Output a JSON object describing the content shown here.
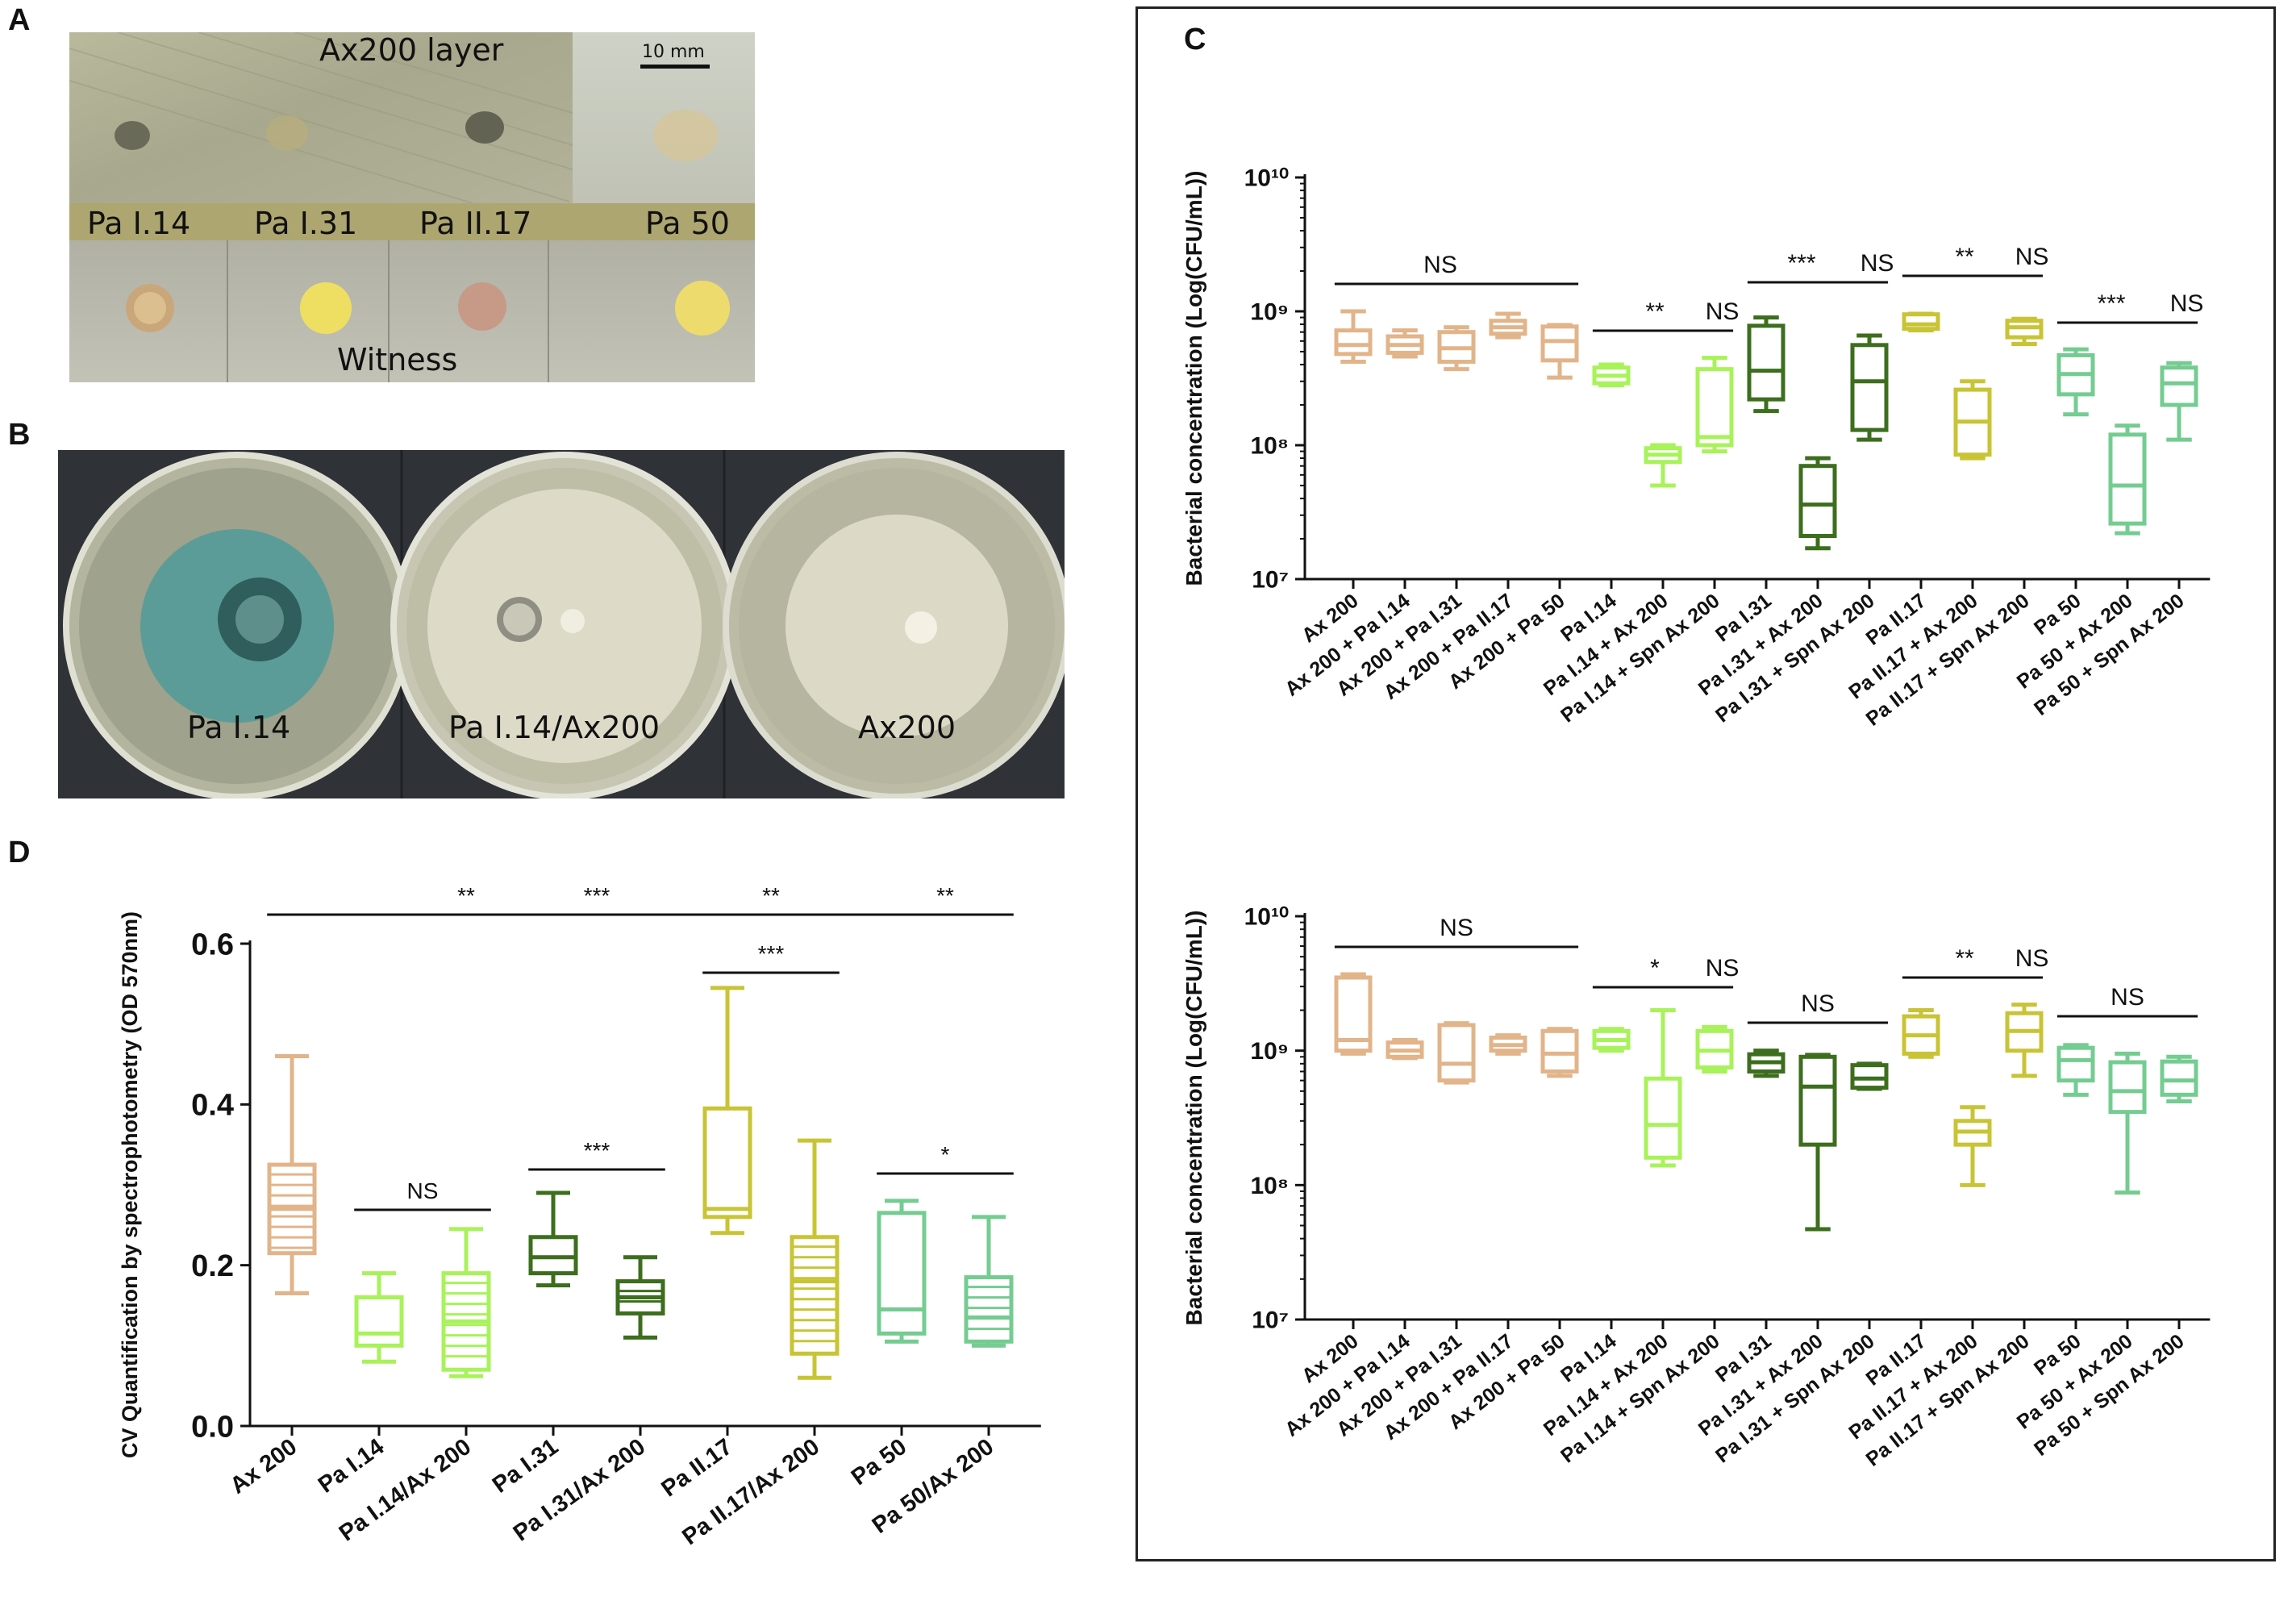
{
  "panels": {
    "a": {
      "letter": "A",
      "layer_label": "Ax200 layer",
      "scale_label": "10 mm",
      "strains": [
        "Pa I.14",
        "Pa I.31",
        "Pa II.17",
        "Pa 50"
      ],
      "witness_label": "Witness"
    },
    "b": {
      "letter": "B",
      "plates": [
        "Pa I.14",
        "Pa I.14/Ax200",
        "Ax200"
      ]
    },
    "c": {
      "letter": "C"
    },
    "d": {
      "letter": "D"
    }
  },
  "colors": {
    "ax": "#E2B48A",
    "pa114": "#A8F25A",
    "pa131": "#3C6E1E",
    "pa217": "#C8C435",
    "pa50": "#74CC91"
  },
  "chart_data": [
    {
      "id": "C-top",
      "type": "boxplot",
      "ylabel": "Bacterial concentration (Log(CFU/mL))",
      "yscale": "log",
      "ylim": [
        10000000,
        10000000000
      ],
      "ytick_labels": [
        "10⁷",
        "10⁸",
        "10⁹",
        "10¹⁰"
      ],
      "categories": [
        "Ax 200",
        "Ax 200 + Pa I.14",
        "Ax 200 + Pa I.31",
        "Ax 200 + Pa II.17",
        "Ax 200 + Pa 50",
        "Pa I.14",
        "Pa I.14 + Ax 200",
        "Pa I.14 + Spn Ax 200",
        "Pa I.31",
        "Pa I.31 + Ax 200",
        "Pa I.31 + Spn Ax 200",
        "Pa II.17",
        "Pa II.17 + Ax 200",
        "Pa II.17 + Spn Ax 200",
        "Pa 50",
        "Pa 50 + Ax 200",
        "Pa 50 + Spn Ax 200"
      ],
      "colors": [
        "ax",
        "ax",
        "ax",
        "ax",
        "ax",
        "pa114",
        "pa114",
        "pa114",
        "pa131",
        "pa131",
        "pa131",
        "pa217",
        "pa217",
        "pa217",
        "pa50",
        "pa50",
        "pa50"
      ],
      "boxes": [
        {
          "min": 420000000,
          "q1": 480000000,
          "median": 560000000,
          "q3": 720000000,
          "max": 1000000000
        },
        {
          "min": 460000000,
          "q1": 490000000,
          "median": 560000000,
          "q3": 650000000,
          "max": 720000000
        },
        {
          "min": 370000000,
          "q1": 420000000,
          "median": 530000000,
          "q3": 700000000,
          "max": 760000000
        },
        {
          "min": 640000000,
          "q1": 680000000,
          "median": 760000000,
          "q3": 850000000,
          "max": 960000000
        },
        {
          "min": 320000000,
          "q1": 430000000,
          "median": 600000000,
          "q3": 770000000,
          "max": 790000000
        },
        {
          "min": 280000000,
          "q1": 290000000,
          "median": 330000000,
          "q3": 380000000,
          "max": 400000000
        },
        {
          "min": 50000000,
          "q1": 75000000,
          "median": 85000000,
          "q3": 95000000,
          "max": 100000000
        },
        {
          "min": 90000000,
          "q1": 100000000,
          "median": 115000000,
          "q3": 370000000,
          "max": 450000000
        },
        {
          "min": 180000000,
          "q1": 220000000,
          "median": 360000000,
          "q3": 780000000,
          "max": 900000000
        },
        {
          "min": 17000000,
          "q1": 21000000,
          "median": 36000000,
          "q3": 70000000,
          "max": 80000000
        },
        {
          "min": 110000000,
          "q1": 130000000,
          "median": 300000000,
          "q3": 560000000,
          "max": 660000000
        },
        {
          "min": 720000000,
          "q1": 740000000,
          "median": 800000000,
          "q3": 950000000,
          "max": 960000000
        },
        {
          "min": 80000000,
          "q1": 85000000,
          "median": 150000000,
          "q3": 260000000,
          "max": 300000000
        },
        {
          "min": 570000000,
          "q1": 640000000,
          "median": 760000000,
          "q3": 850000000,
          "max": 880000000
        },
        {
          "min": 170000000,
          "q1": 240000000,
          "median": 340000000,
          "q3": 470000000,
          "max": 520000000
        },
        {
          "min": 22000000,
          "q1": 26000000,
          "median": 50000000,
          "q3": 120000000,
          "max": 140000000
        },
        {
          "min": 110000000,
          "q1": 200000000,
          "median": 290000000,
          "q3": 380000000,
          "max": 410000000
        }
      ],
      "significance": [
        {
          "from": 0,
          "to": 4,
          "label": "NS",
          "line": true
        },
        {
          "from": 5,
          "to": 7,
          "label": "**",
          "line": true
        },
        {
          "from": 7,
          "to": 7,
          "label": "NS",
          "line": false
        },
        {
          "from": 8,
          "to": 10,
          "label": "***",
          "line": true
        },
        {
          "from": 10,
          "to": 10,
          "label": "NS",
          "line": false
        },
        {
          "from": 11,
          "to": 13,
          "label": "**",
          "line": true
        },
        {
          "from": 13,
          "to": 13,
          "label": "NS",
          "line": false
        },
        {
          "from": 14,
          "to": 16,
          "label": "***",
          "line": true
        },
        {
          "from": 16,
          "to": 16,
          "label": "NS",
          "line": false
        }
      ]
    },
    {
      "id": "C-bottom",
      "type": "boxplot",
      "ylabel": "Bacterial concentration (Log(CFU/mL))",
      "yscale": "log",
      "ylim": [
        10000000,
        10000000000
      ],
      "ytick_labels": [
        "10⁷",
        "10⁸",
        "10⁹",
        "10¹⁰"
      ],
      "categories": [
        "Ax 200",
        "Ax 200 + Pa I.14",
        "Ax 200 + Pa I.31",
        "Ax 200 + Pa II.17",
        "Ax 200 + Pa 50",
        "Pa I.14",
        "Pa I.14 + Ax 200",
        "Pa I.14 + Spn Ax 200",
        "Pa I.31",
        "Pa I.31 + Ax 200",
        "Pa I.31 + Spn Ax 200",
        "Pa II.17",
        "Pa II.17 + Ax 200",
        "Pa II.17 + Spn Ax 200",
        "Pa 50",
        "Pa 50 + Ax 200",
        "Pa 50 + Spn Ax 200"
      ],
      "colors": [
        "ax",
        "ax",
        "ax",
        "ax",
        "ax",
        "pa114",
        "pa114",
        "pa114",
        "pa131",
        "pa131",
        "pa131",
        "pa217",
        "pa217",
        "pa217",
        "pa50",
        "pa50",
        "pa50"
      ],
      "boxes": [
        {
          "min": 950000000,
          "q1": 1000000000,
          "median": 1200000000,
          "q3": 3500000000,
          "max": 3700000000
        },
        {
          "min": 880000000,
          "q1": 900000000,
          "median": 1000000000,
          "q3": 1150000000,
          "max": 1200000000
        },
        {
          "min": 580000000,
          "q1": 600000000,
          "median": 800000000,
          "q3": 1550000000,
          "max": 1600000000
        },
        {
          "min": 950000000,
          "q1": 1000000000,
          "median": 1100000000,
          "q3": 1250000000,
          "max": 1300000000
        },
        {
          "min": 650000000,
          "q1": 700000000,
          "median": 950000000,
          "q3": 1400000000,
          "max": 1450000000
        },
        {
          "min": 1000000000,
          "q1": 1050000000,
          "median": 1200000000,
          "q3": 1400000000,
          "max": 1450000000
        },
        {
          "min": 140000000,
          "q1": 160000000,
          "median": 280000000,
          "q3": 620000000,
          "max": 2000000000
        },
        {
          "min": 700000000,
          "q1": 750000000,
          "median": 1000000000,
          "q3": 1400000000,
          "max": 1500000000
        },
        {
          "min": 650000000,
          "q1": 700000000,
          "median": 820000000,
          "q3": 940000000,
          "max": 1000000000
        },
        {
          "min": 47000000,
          "q1": 200000000,
          "median": 540000000,
          "q3": 900000000,
          "max": 930000000
        },
        {
          "min": 520000000,
          "q1": 530000000,
          "median": 620000000,
          "q3": 780000000,
          "max": 800000000
        },
        {
          "min": 900000000,
          "q1": 950000000,
          "median": 1300000000,
          "q3": 1800000000,
          "max": 2000000000
        },
        {
          "min": 100000000,
          "q1": 200000000,
          "median": 250000000,
          "q3": 300000000,
          "max": 380000000
        },
        {
          "min": 650000000,
          "q1": 1000000000,
          "median": 1400000000,
          "q3": 1900000000,
          "max": 2200000000
        },
        {
          "min": 470000000,
          "q1": 600000000,
          "median": 850000000,
          "q3": 1050000000,
          "max": 1100000000
        },
        {
          "min": 88000000,
          "q1": 350000000,
          "median": 500000000,
          "q3": 820000000,
          "max": 950000000
        },
        {
          "min": 420000000,
          "q1": 470000000,
          "median": 600000000,
          "q3": 830000000,
          "max": 900000000
        }
      ],
      "significance": [
        {
          "from": 0,
          "to": 4,
          "label": "NS",
          "line": true
        },
        {
          "from": 5,
          "to": 7,
          "label": "*",
          "line": true
        },
        {
          "from": 7,
          "to": 7,
          "label": "NS",
          "line": false
        },
        {
          "from": 8,
          "to": 10,
          "label": "NS",
          "line": true
        },
        {
          "from": 11,
          "to": 13,
          "label": "**",
          "line": true
        },
        {
          "from": 13,
          "to": 13,
          "label": "NS",
          "line": false
        },
        {
          "from": 14,
          "to": 16,
          "label": "NS",
          "line": true
        }
      ]
    },
    {
      "id": "D",
      "type": "boxplot",
      "ylabel": "CV Quantification by spectrophotometry (OD 570nm)",
      "yscale": "linear",
      "ylim": [
        0,
        0.6
      ],
      "yticks": [
        0.0,
        0.2,
        0.4,
        0.6
      ],
      "ytick_labels": [
        "0.0",
        "0.2",
        "0.4",
        "0.6"
      ],
      "categories": [
        "Ax 200",
        "Pa I.14",
        "Pa I.14/Ax 200",
        "Pa I.31",
        "Pa I.31/Ax 200",
        "Pa II.17",
        "Pa II.17/Ax 200",
        "Pa 50",
        "Pa 50/Ax 200"
      ],
      "colors": [
        "ax",
        "pa114",
        "pa114",
        "pa131",
        "pa131",
        "pa217",
        "pa217",
        "pa50",
        "pa50"
      ],
      "striped": [
        true,
        false,
        true,
        false,
        true,
        false,
        true,
        false,
        true
      ],
      "boxes": [
        {
          "min": 0.165,
          "q1": 0.215,
          "median": 0.27,
          "q3": 0.325,
          "max": 0.46
        },
        {
          "min": 0.08,
          "q1": 0.1,
          "median": 0.115,
          "q3": 0.16,
          "max": 0.19
        },
        {
          "min": 0.062,
          "q1": 0.07,
          "median": 0.13,
          "q3": 0.19,
          "max": 0.245
        },
        {
          "min": 0.175,
          "q1": 0.19,
          "median": 0.21,
          "q3": 0.235,
          "max": 0.29
        },
        {
          "min": 0.11,
          "q1": 0.14,
          "median": 0.16,
          "q3": 0.18,
          "max": 0.21
        },
        {
          "min": 0.24,
          "q1": 0.26,
          "median": 0.27,
          "q3": 0.395,
          "max": 0.545
        },
        {
          "min": 0.06,
          "q1": 0.09,
          "median": 0.18,
          "q3": 0.235,
          "max": 0.355
        },
        {
          "min": 0.105,
          "q1": 0.115,
          "median": 0.145,
          "q3": 0.265,
          "max": 0.28
        },
        {
          "min": 0.1,
          "q1": 0.105,
          "median": 0.135,
          "q3": 0.185,
          "max": 0.26
        }
      ],
      "significance": [
        {
          "from": 0,
          "to": 8,
          "label": "**",
          "line": true,
          "label_at": 2
        },
        {
          "from": 0,
          "to": 8,
          "label": "***",
          "line": false,
          "label_at": 3.5
        },
        {
          "from": 0,
          "to": 8,
          "label": "**",
          "line": false,
          "label_at": 5.5
        },
        {
          "from": 0,
          "to": 8,
          "label": "**",
          "line": false,
          "label_at": 7.5
        },
        {
          "from": 5,
          "to": 6,
          "label": "***",
          "line": true
        },
        {
          "from": 1,
          "to": 2,
          "label": "NS",
          "line": true
        },
        {
          "from": 3,
          "to": 4,
          "label": "***",
          "line": true
        },
        {
          "from": 7,
          "to": 8,
          "label": "*",
          "line": true
        }
      ]
    }
  ]
}
